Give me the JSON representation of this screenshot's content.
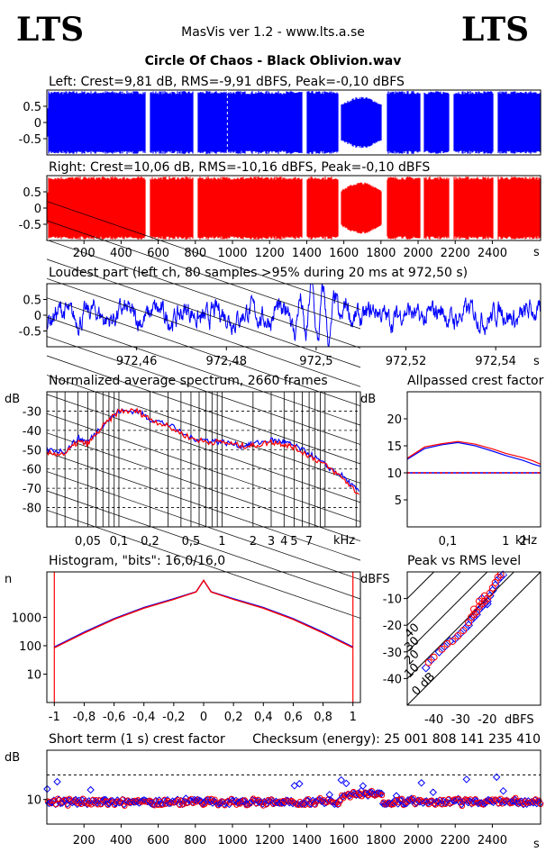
{
  "header": {
    "logo_left": "LTS",
    "logo_right": "LTS",
    "app": "MasVis ver 1.2 - www.lts.a.se",
    "file": "Circle Of Chaos - Black Oblivion.wav"
  },
  "colors": {
    "left": "#0000ff",
    "right": "#ff0000",
    "grid": "#000000"
  },
  "chart_data": [
    {
      "id": "left",
      "type": "area",
      "title": "Left: Crest=9,81 dB, RMS=-9,91 dBFS, Peak=-0,10 dBFS",
      "yticks": [
        "0.5",
        "0",
        "-0.5"
      ],
      "ylim": [
        -1,
        1
      ],
      "xlim": [
        0,
        2660
      ],
      "gaps_s": [
        [
          530,
          555
        ],
        [
          790,
          812
        ],
        [
          1375,
          1400
        ],
        [
          1570,
          1585
        ],
        [
          1805,
          1830
        ],
        [
          2010,
          2030
        ],
        [
          2165,
          2190
        ],
        [
          2405,
          2430
        ]
      ],
      "quiet_section_s": [
        1585,
        1805
      ]
    },
    {
      "id": "right",
      "type": "area",
      "title": "Right: Crest=10,06 dB, RMS=-10,16 dBFS, Peak=-0,10 dBFS",
      "yticks": [
        "0.5",
        "0",
        "-0.5"
      ],
      "ylim": [
        -1,
        1
      ],
      "xlim": [
        0,
        2660
      ],
      "xticks": [
        "200",
        "400",
        "600",
        "800",
        "1000",
        "1200",
        "1400",
        "1600",
        "1800",
        "2000",
        "2200",
        "2400"
      ],
      "xunit": "s"
    },
    {
      "id": "loudest",
      "type": "line",
      "title": "Loudest part (left  ch, 80 samples >95% during 20 ms at 972,50 s)",
      "yticks": [
        "0.5",
        "0",
        "-0.5"
      ],
      "ylim": [
        -1,
        1
      ],
      "xlim": [
        972.44,
        972.55
      ],
      "xticks": [
        "972,46",
        "972,48",
        "972,5",
        "972,52",
        "972,54"
      ],
      "xunit": "s"
    },
    {
      "id": "spectrum",
      "type": "line",
      "title": "Normalized average spectrum, 2660 frames",
      "ylabel": "dB",
      "yticks": [
        "-30",
        "-40",
        "-50",
        "-60",
        "-70",
        "-80"
      ],
      "xticks": [
        "0,05",
        "0,1",
        "0,2",
        "0,5",
        "1",
        "2",
        "3",
        "4",
        "5",
        "7"
      ],
      "xunit": "kHz",
      "ylim": [
        -90,
        -20
      ],
      "xlim_khz": [
        0.02,
        22
      ],
      "series": [
        {
          "color": "left",
          "x_khz": [
            0.02,
            0.03,
            0.04,
            0.05,
            0.07,
            0.1,
            0.15,
            0.2,
            0.3,
            0.5,
            0.7,
            1,
            1.5,
            2,
            3,
            4,
            5,
            7,
            10,
            15,
            22
          ],
          "y_db": [
            -50,
            -51,
            -44,
            -46,
            -37,
            -30,
            -30,
            -34,
            -37,
            -44,
            -45,
            -46,
            -48,
            -47,
            -45,
            -46,
            -48,
            -52,
            -58,
            -64,
            -73
          ]
        },
        {
          "color": "right",
          "x_khz": [
            0.02,
            0.03,
            0.04,
            0.05,
            0.07,
            0.1,
            0.15,
            0.2,
            0.3,
            0.5,
            0.7,
            1,
            1.5,
            2,
            3,
            4,
            5,
            7,
            10,
            15,
            22
          ],
          "y_db": [
            -52,
            -52,
            -46,
            -47,
            -38,
            -30,
            -30,
            -34,
            -38,
            -44,
            -46,
            -46,
            -48,
            -48,
            -46,
            -47,
            -49,
            -53,
            -58,
            -65,
            -74
          ]
        }
      ]
    },
    {
      "id": "crest",
      "type": "line",
      "title": "Allpassed crest factor",
      "ylabel": "dB",
      "yticks": [
        "20",
        "15",
        "10",
        "5"
      ],
      "xticks": [
        "0,1",
        "1",
        "2"
      ],
      "xunit": "kHz",
      "ylim": [
        0,
        25
      ],
      "xlim_khz": [
        0.02,
        4
      ],
      "series": [
        {
          "color": "left",
          "x_khz": [
            0.02,
            0.04,
            0.08,
            0.15,
            0.3,
            0.6,
            1,
            2,
            3,
            4
          ],
          "y_db": [
            12.5,
            14.5,
            15.2,
            15.6,
            15.0,
            14.0,
            13.2,
            12.3,
            11.6,
            11.2
          ]
        },
        {
          "color": "right",
          "x_khz": [
            0.02,
            0.04,
            0.08,
            0.15,
            0.3,
            0.6,
            1,
            2,
            3,
            4
          ],
          "y_db": [
            12.7,
            14.8,
            15.4,
            15.8,
            15.3,
            14.4,
            13.6,
            12.8,
            12.2,
            11.6
          ]
        }
      ],
      "reference_db": 10
    },
    {
      "id": "histogram",
      "type": "line",
      "title": "Histogram, \"bits\": 16,0/16,0",
      "ylabel": "n",
      "yticks": [
        "1000",
        "100",
        "10"
      ],
      "xticks": [
        "-1",
        "-0,8",
        "-0,6",
        "-0,4",
        "-0,2",
        "0",
        "0,2",
        "0,4",
        "0,6",
        "0,8",
        "1"
      ],
      "xlim": [
        -1.05,
        1.05
      ],
      "series": [
        {
          "color": "left",
          "x": [
            -1,
            -0.8,
            -0.6,
            -0.4,
            -0.2,
            -0.05,
            0,
            0.05,
            0.2,
            0.4,
            0.6,
            0.8,
            1
          ],
          "n": [
            90,
            300,
            900,
            2200,
            4500,
            8000,
            20000,
            8000,
            4500,
            2200,
            900,
            300,
            90
          ]
        },
        {
          "color": "right",
          "x": [
            -1,
            -0.8,
            -0.6,
            -0.4,
            -0.2,
            -0.05,
            0,
            0.05,
            0.2,
            0.4,
            0.6,
            0.8,
            1
          ],
          "n": [
            85,
            280,
            850,
            2100,
            4300,
            7800,
            20000,
            7800,
            4300,
            2100,
            850,
            280,
            85
          ]
        }
      ]
    },
    {
      "id": "peak_rms",
      "type": "scatter",
      "title": "Peak vs RMS level",
      "ylabel": "dBFS",
      "xlabel": "dBFS",
      "yticks": [
        "-10",
        "-20",
        "-30",
        "-40"
      ],
      "xticks": [
        "-40",
        "-30",
        "-20"
      ],
      "xlim": [
        -50,
        0
      ],
      "ylim": [
        -50,
        0
      ],
      "diagonal_labels": [
        "40",
        "30",
        "20",
        "10",
        "0 dB"
      ],
      "points_left": [
        [
          -43,
          -36
        ],
        [
          -41,
          -33
        ],
        [
          -38,
          -30
        ],
        [
          -36,
          -28
        ],
        [
          -34,
          -26
        ],
        [
          -32,
          -25
        ],
        [
          -30,
          -23
        ],
        [
          -28,
          -21
        ],
        [
          -27,
          -20
        ],
        [
          -26,
          -18
        ],
        [
          -25,
          -17
        ],
        [
          -24,
          -16
        ],
        [
          -23,
          -14
        ],
        [
          -22,
          -13
        ],
        [
          -21,
          -12
        ],
        [
          -20,
          -11
        ],
        [
          -19,
          -9
        ],
        [
          -18,
          -7
        ],
        [
          -17,
          -5
        ],
        [
          -16,
          -3
        ],
        [
          -15,
          -2
        ],
        [
          -14,
          -1
        ],
        [
          -22,
          -10
        ],
        [
          -20,
          -12
        ],
        [
          -24,
          -15
        ]
      ],
      "points_right": [
        [
          -42,
          -34
        ],
        [
          -40,
          -32
        ],
        [
          -37,
          -29
        ],
        [
          -35,
          -27
        ],
        [
          -33,
          -26
        ],
        [
          -31,
          -24
        ],
        [
          -29,
          -22
        ],
        [
          -27,
          -19
        ],
        [
          -26,
          -17
        ],
        [
          -25,
          -16
        ],
        [
          -24,
          -15
        ],
        [
          -23,
          -13
        ],
        [
          -22,
          -12
        ],
        [
          -21,
          -11
        ],
        [
          -20,
          -10
        ],
        [
          -19,
          -8
        ],
        [
          -18,
          -6
        ],
        [
          -17,
          -4
        ],
        [
          -16,
          -2
        ],
        [
          -15,
          -1
        ],
        [
          -23,
          -11
        ],
        [
          -21,
          -9
        ],
        [
          -25,
          -14
        ]
      ]
    },
    {
      "id": "short_crest",
      "type": "scatter",
      "title": "Short term (1 s) crest factor",
      "checksum_label": "Checksum (energy):  25 001 808 141 235 410",
      "ylabel": "dB",
      "yticks": [
        "10"
      ],
      "xticks": [
        "200",
        "400",
        "600",
        "800",
        "1000",
        "1200",
        "1400",
        "1600",
        "1800",
        "2000",
        "2200",
        "2400"
      ],
      "xunit": "s",
      "xlim": [
        0,
        2660
      ],
      "ylim": [
        0,
        30
      ],
      "reference_db": 20
    }
  ]
}
